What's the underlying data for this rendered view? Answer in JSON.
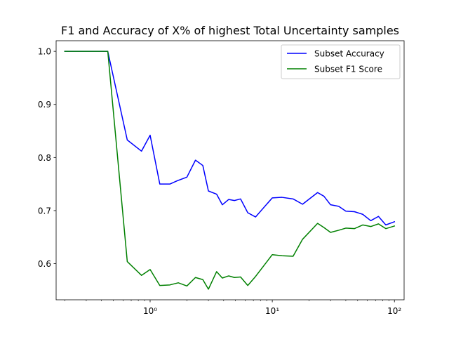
{
  "chart_data": {
    "type": "line",
    "title": "F1 and Accuracy of X% of highest Total Uncertainty samples",
    "xlabel": "",
    "ylabel": "",
    "xscale": "log",
    "xlim": [
      0.17,
      120
    ],
    "ylim": [
      0.532,
      1.02
    ],
    "xticks": [
      {
        "value": 1,
        "label": "10⁰"
      },
      {
        "value": 10,
        "label": "10¹"
      },
      {
        "value": 100,
        "label": "10²"
      }
    ],
    "yticks": [
      {
        "value": 0.6,
        "label": "0.6"
      },
      {
        "value": 0.7,
        "label": "0.7"
      },
      {
        "value": 0.8,
        "label": "0.8"
      },
      {
        "value": 0.9,
        "label": "0.9"
      },
      {
        "value": 1.0,
        "label": "1.0"
      }
    ],
    "grid": false,
    "legend_position": "top-right",
    "x": [
      0.2,
      0.45,
      0.65,
      0.85,
      1.0,
      1.2,
      1.45,
      1.7,
      2.0,
      2.35,
      2.7,
      3.0,
      3.5,
      3.9,
      4.4,
      4.9,
      5.5,
      6.3,
      7.3,
      10.0,
      12.0,
      14.8,
      17.7,
      23.5,
      26.5,
      30.0,
      35.0,
      40.0,
      47.0,
      55.0,
      64.0,
      74.0,
      85.0,
      100.0
    ],
    "series": [
      {
        "name": "Subset Accuracy",
        "color": "#0000ff",
        "values": [
          1.0,
          1.0,
          0.833,
          0.812,
          0.842,
          0.75,
          0.75,
          0.757,
          0.763,
          0.795,
          0.785,
          0.737,
          0.731,
          0.711,
          0.721,
          0.719,
          0.722,
          0.696,
          0.688,
          0.724,
          0.725,
          0.722,
          0.712,
          0.734,
          0.727,
          0.711,
          0.708,
          0.699,
          0.698,
          0.693,
          0.681,
          0.689,
          0.673,
          0.679
        ]
      },
      {
        "name": "Subset F1 Score",
        "color": "#008000",
        "values": [
          1.0,
          1.0,
          0.604,
          0.578,
          0.589,
          0.559,
          0.56,
          0.564,
          0.558,
          0.574,
          0.57,
          0.552,
          0.585,
          0.573,
          0.577,
          0.574,
          0.575,
          0.559,
          0.576,
          0.617,
          0.615,
          0.614,
          0.646,
          0.676,
          0.668,
          0.659,
          0.663,
          0.667,
          0.666,
          0.673,
          0.67,
          0.675,
          0.666,
          0.671
        ]
      }
    ]
  }
}
